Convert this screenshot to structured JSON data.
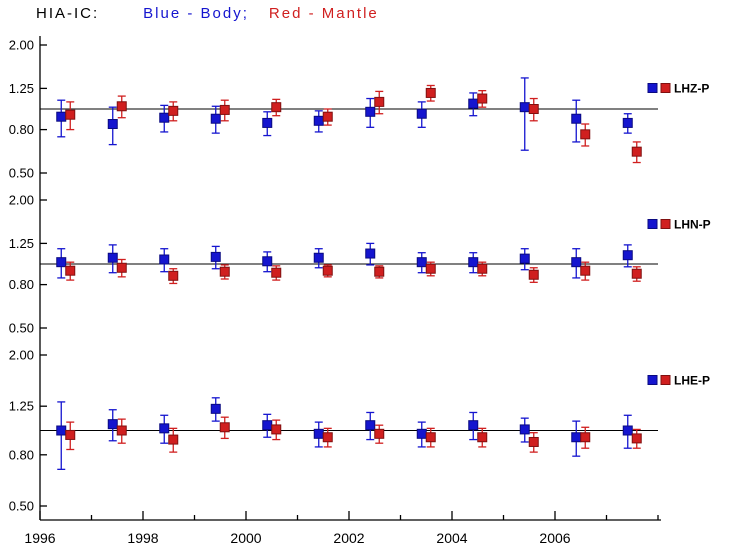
{
  "title": {
    "station": "HIA-IC:",
    "legend_body": "Blue - Body;",
    "legend_mantle": "Red - Mantle"
  },
  "colors": {
    "body": "#1515cf",
    "body_dark": "#0a0a80",
    "mantle": "#d01f1f",
    "mantle_dark": "#801010",
    "axis": "#000000",
    "text": "#000000"
  },
  "x_axis": {
    "tick_years": [
      1996,
      1998,
      2000,
      2002,
      2004,
      2006
    ],
    "tick_labels": [
      "1996",
      "1998",
      "2000",
      "2002",
      "2004",
      "2006"
    ],
    "range": [
      1996,
      2008
    ]
  },
  "chart_data": [
    {
      "type": "scatter",
      "panel_label": "LHZ-P",
      "yscale": "log",
      "ylim": [
        0.5,
        2.0
      ],
      "yticks": [
        2.0,
        1.25,
        0.8,
        0.5
      ],
      "ytick_labels": [
        "2.00",
        "1.25",
        "0.80",
        "0.50"
      ],
      "ref_line": 1.0,
      "x": [
        1996.5,
        1997.5,
        1998.5,
        1999.5,
        2000.5,
        2001.5,
        2002.5,
        2003.5,
        2004.5,
        2005.5,
        2006.5,
        2007.5
      ],
      "series": [
        {
          "name": "Body",
          "color_key": "body",
          "values": [
            0.92,
            0.85,
            0.91,
            0.9,
            0.86,
            0.88,
            0.97,
            0.95,
            1.06,
            1.02,
            0.9,
            0.86
          ],
          "errors": [
            0.18,
            0.17,
            0.13,
            0.13,
            0.11,
            0.1,
            0.15,
            0.13,
            0.13,
            0.38,
            0.2,
            0.09
          ]
        },
        {
          "name": "Mantle",
          "color_key": "mantle",
          "values": [
            0.94,
            1.03,
            0.98,
            0.99,
            1.02,
            0.92,
            1.08,
            1.19,
            1.12,
            1.0,
            0.76,
            0.63
          ],
          "errors": [
            0.14,
            0.12,
            0.1,
            0.11,
            0.09,
            0.08,
            0.13,
            0.1,
            0.1,
            0.12,
            0.09,
            0.07
          ]
        }
      ]
    },
    {
      "type": "scatter",
      "panel_label": "LHN-P",
      "yscale": "log",
      "ylim": [
        0.5,
        2.0
      ],
      "yticks": [
        2.0,
        1.25,
        0.8,
        0.5
      ],
      "ytick_labels": [
        "2.00",
        "1.25",
        "0.80",
        "0.50"
      ],
      "ref_line": 1.0,
      "x": [
        1996.5,
        1997.5,
        1998.5,
        1999.5,
        2000.5,
        2001.5,
        2002.5,
        2003.5,
        2004.5,
        2005.5,
        2006.5,
        2007.5
      ],
      "series": [
        {
          "name": "Body",
          "color_key": "body",
          "values": [
            1.02,
            1.07,
            1.05,
            1.08,
            1.03,
            1.07,
            1.12,
            1.02,
            1.02,
            1.06,
            1.02,
            1.1
          ],
          "errors": [
            0.16,
            0.16,
            0.13,
            0.13,
            0.11,
            0.11,
            0.13,
            0.11,
            0.11,
            0.12,
            0.16,
            0.13
          ]
        },
        {
          "name": "Mantle",
          "color_key": "mantle",
          "values": [
            0.93,
            0.96,
            0.88,
            0.92,
            0.91,
            0.93,
            0.92,
            0.95,
            0.95,
            0.89,
            0.93,
            0.9
          ],
          "errors": [
            0.09,
            0.09,
            0.07,
            0.07,
            0.07,
            0.06,
            0.06,
            0.07,
            0.07,
            0.07,
            0.09,
            0.07
          ]
        }
      ]
    },
    {
      "type": "scatter",
      "panel_label": "LHE-P",
      "yscale": "log",
      "ylim": [
        0.5,
        2.0
      ],
      "yticks": [
        2.0,
        1.25,
        0.8,
        0.5
      ],
      "ytick_labels": [
        "2.00",
        "1.25",
        "0.80",
        "0.50"
      ],
      "ref_line": 1.0,
      "x": [
        1996.5,
        1997.5,
        1998.5,
        1999.5,
        2000.5,
        2001.5,
        2002.5,
        2003.5,
        2004.5,
        2005.5,
        2006.5,
        2007.5
      ],
      "series": [
        {
          "name": "Body",
          "color_key": "body",
          "values": [
            1.0,
            1.06,
            1.02,
            1.22,
            1.05,
            0.97,
            1.05,
            0.97,
            1.05,
            1.01,
            0.94,
            1.0
          ],
          "errors": [
            0.3,
            0.15,
            0.13,
            0.13,
            0.11,
            0.11,
            0.13,
            0.11,
            0.13,
            0.11,
            0.15,
            0.15
          ]
        },
        {
          "name": "Mantle",
          "color_key": "mantle",
          "values": [
            0.96,
            1.0,
            0.92,
            1.03,
            1.01,
            0.94,
            0.97,
            0.94,
            0.94,
            0.9,
            0.94,
            0.93
          ],
          "errors": [
            0.12,
            0.11,
            0.1,
            0.1,
            0.09,
            0.08,
            0.08,
            0.08,
            0.08,
            0.08,
            0.09,
            0.08
          ]
        }
      ]
    }
  ]
}
